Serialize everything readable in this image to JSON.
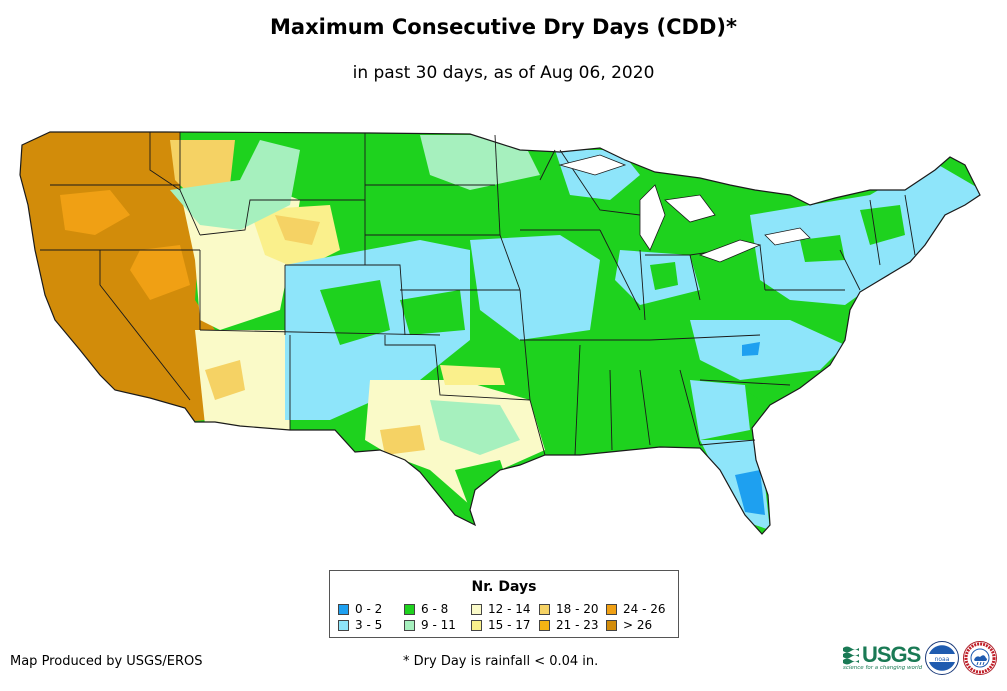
{
  "title": "Maximum Consecutive Dry Days (CDD)*",
  "subtitle": "in past 30 days, as of Aug 06, 2020",
  "legend": {
    "title": "Nr. Days",
    "items": [
      {
        "label": "0 - 2",
        "color": "#1ea0f0"
      },
      {
        "label": "3 - 5",
        "color": "#8ee5fa"
      },
      {
        "label": "6 - 8",
        "color": "#1ed21e"
      },
      {
        "label": "9 - 11",
        "color": "#a6f0be"
      },
      {
        "label": "12 - 14",
        "color": "#fafac8"
      },
      {
        "label": "15 - 17",
        "color": "#faf08c"
      },
      {
        "label": "18 - 20",
        "color": "#f5d264"
      },
      {
        "label": "21 - 23",
        "color": "#f5b414"
      },
      {
        "label": "24 - 26",
        "color": "#f0a014"
      },
      {
        "label": "> 26",
        "color": "#d28c0a"
      }
    ]
  },
  "credit": "Map Produced by USGS/EROS",
  "footnote": "* Dry Day is rainfall < 0.04 in.",
  "logos": {
    "usgs_text": "USGS",
    "usgs_tagline": "science for a changing world",
    "noaa_text": "noaa",
    "nws_icon": "nws-seal-icon"
  }
}
